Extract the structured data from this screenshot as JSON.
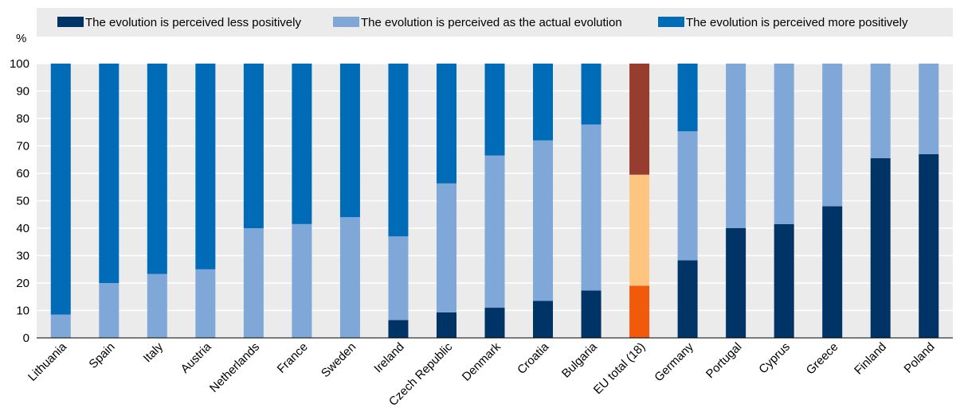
{
  "chart_data": {
    "type": "bar",
    "stacked": true,
    "ylabel": "%",
    "ylim": [
      0,
      100
    ],
    "yticks": [
      0,
      10,
      20,
      30,
      40,
      50,
      60,
      70,
      80,
      90,
      100
    ],
    "grid": true,
    "legend_position": "top",
    "categories": [
      "Lithuania",
      "Spain",
      "Italy",
      "Austria",
      "Netherlands",
      "France",
      "Sweden",
      "Ireland",
      "Czech Republic",
      "Denmark",
      "Croatia",
      "Bulgaria",
      "EU total (18)",
      "Germany",
      "Portugal",
      "Cyprus",
      "Greece",
      "Finland",
      "Poland"
    ],
    "series": [
      {
        "name": "The evolution is perceived less positively",
        "color": "#003366",
        "values": [
          0,
          0,
          0,
          0,
          0,
          0,
          0,
          6.5,
          9.3,
          11,
          13.5,
          17.3,
          19,
          28.3,
          40,
          41.5,
          48,
          65.5,
          67
        ]
      },
      {
        "name": "The evolution is perceived as the actual evolution",
        "color": "#7fa8d9",
        "values": [
          8.5,
          20,
          23.3,
          25,
          40,
          41.5,
          44,
          30.5,
          47,
          55.5,
          58.5,
          60.5,
          40.5,
          47,
          60,
          58.5,
          52,
          34.5,
          33
        ]
      },
      {
        "name": "The evolution is perceived more positively",
        "color": "#006bb6",
        "values": [
          91.5,
          80,
          76.7,
          75,
          60,
          58.5,
          56,
          63,
          43.7,
          33.5,
          28,
          22.2,
          40.5,
          24.7,
          0,
          0,
          0,
          0,
          0
        ]
      }
    ],
    "highlight": {
      "category": "EU total (18)",
      "colors": [
        "#f15a0b",
        "#fdc57f",
        "#973d2f"
      ]
    }
  },
  "colors": {
    "plot_background": "#ebebeb",
    "legend_background": "#ebebeb",
    "gridline": "#ffffff"
  }
}
